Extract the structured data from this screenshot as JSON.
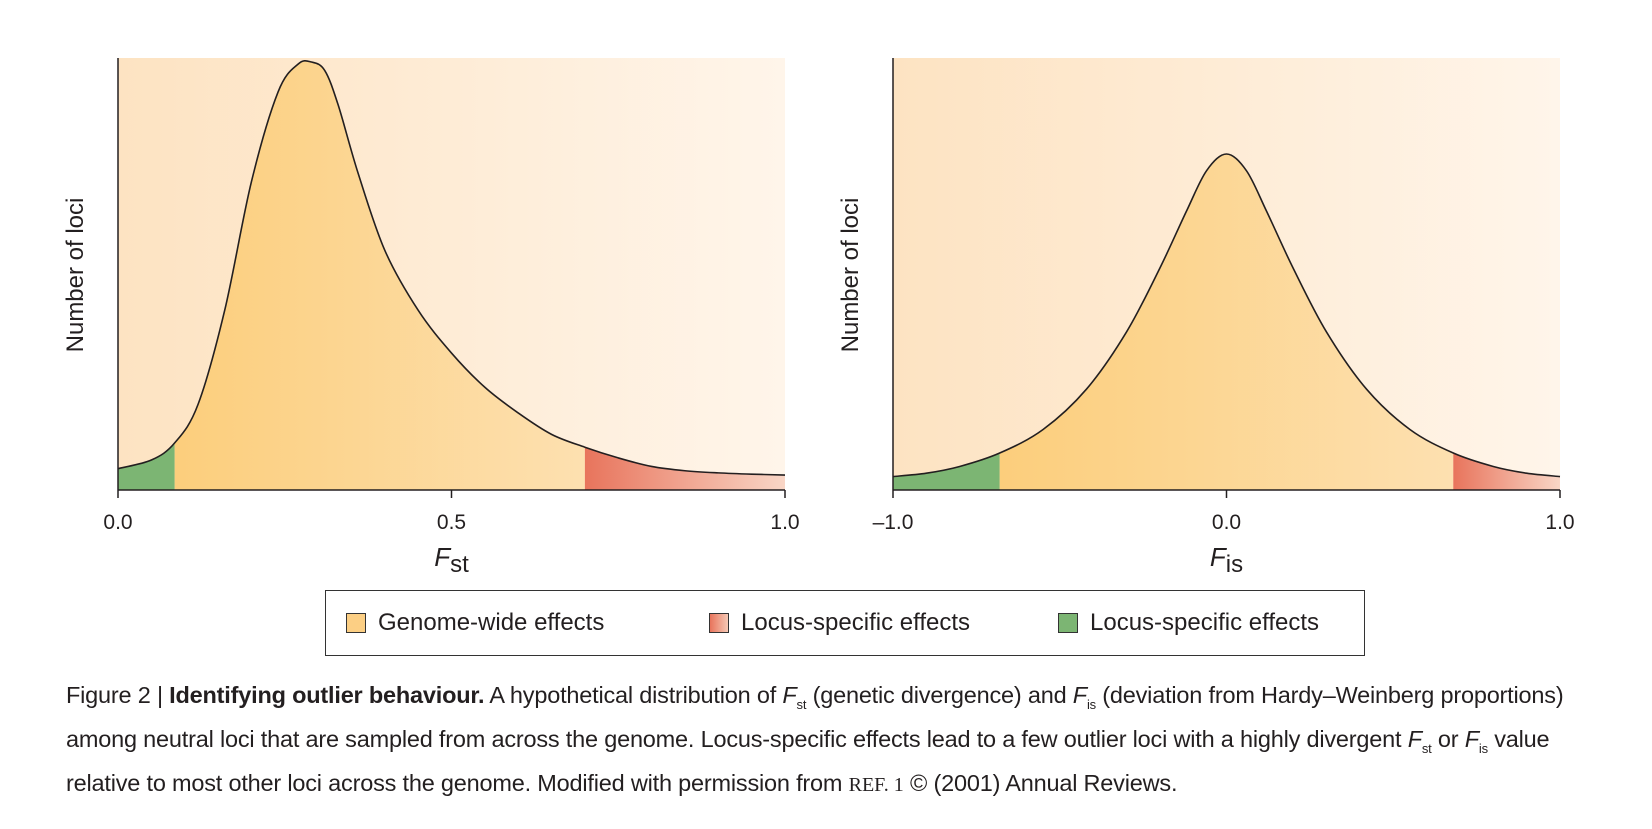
{
  "chart_data": [
    {
      "type": "area",
      "xlabel_main": "F",
      "xlabel_sub": "st",
      "ylabel": "Number of loci",
      "xlim": [
        0.0,
        1.0
      ],
      "ticks": [
        "0.0",
        "0.5",
        "1.0"
      ],
      "tick_values": [
        0.0,
        0.5,
        1.0
      ],
      "x": [
        0.0,
        0.05,
        0.085,
        0.12,
        0.16,
        0.2,
        0.24,
        0.27,
        0.29,
        0.31,
        0.33,
        0.36,
        0.4,
        0.45,
        0.5,
        0.55,
        0.6,
        0.65,
        0.7,
        0.75,
        0.8,
        0.85,
        0.9,
        0.95,
        1.0
      ],
      "y": [
        0.05,
        0.07,
        0.11,
        0.2,
        0.42,
        0.72,
        0.93,
        0.995,
        1.0,
        0.98,
        0.9,
        0.74,
        0.56,
        0.42,
        0.32,
        0.24,
        0.18,
        0.13,
        0.1,
        0.075,
        0.055,
        0.045,
        0.04,
        0.037,
        0.035
      ],
      "regions": [
        {
          "from": 0.0,
          "to": 0.085,
          "category": "green"
        },
        {
          "from": 0.085,
          "to": 0.7,
          "category": "orange"
        },
        {
          "from": 0.7,
          "to": 1.0,
          "category": "red"
        }
      ]
    },
    {
      "type": "area",
      "xlabel_main": "F",
      "xlabel_sub": "is",
      "ylabel": "Number of loci",
      "xlim": [
        -1.0,
        1.0
      ],
      "ticks": [
        "–1.0",
        "0.0",
        "1.0"
      ],
      "tick_values": [
        -1.0,
        0.0,
        1.0
      ],
      "x": [
        -1.0,
        -0.9,
        -0.8,
        -0.68,
        -0.55,
        -0.42,
        -0.3,
        -0.2,
        -0.12,
        -0.06,
        0.0,
        0.06,
        0.12,
        0.2,
        0.3,
        0.42,
        0.55,
        0.68,
        0.8,
        0.9,
        1.0
      ],
      "y": [
        0.04,
        0.05,
        0.07,
        0.11,
        0.18,
        0.3,
        0.47,
        0.66,
        0.83,
        0.95,
        1.0,
        0.95,
        0.83,
        0.66,
        0.47,
        0.3,
        0.18,
        0.11,
        0.07,
        0.05,
        0.04
      ],
      "regions": [
        {
          "from": -1.0,
          "to": -0.68,
          "category": "green"
        },
        {
          "from": -0.68,
          "to": 0.68,
          "category": "orange"
        },
        {
          "from": 0.68,
          "to": 1.0,
          "category": "red"
        }
      ]
    }
  ],
  "colors": {
    "background_peach": "#fde9cf",
    "orange": "#fdd07f",
    "red": "#e8745c",
    "green": "#7cb573",
    "line": "#231f20"
  },
  "legend": [
    {
      "label": "Genome-wide effects",
      "color": "#fccf84"
    },
    {
      "label": "Locus-specific effects",
      "color": "#e98670"
    },
    {
      "label": "Locus-specific effects",
      "color": "#7cb573"
    }
  ],
  "caption": {
    "prefix": "Figure 2 | ",
    "bold": "Identifying outlier behaviour.",
    "part1": " A hypothetical distribution of ",
    "f1": "F",
    "f1_sub": "st",
    "part2": " (genetic divergence) and ",
    "f2": "F",
    "f2_sub": "is",
    "part3": " (deviation from Hardy–Weinberg proportions) among neutral loci that are sampled from across the genome. Locus-specific effects lead to a few outlier loci with a highly divergent ",
    "f3": "F",
    "f3_sub": "st",
    "part4": " or ",
    "f4": "F",
    "f4_sub": "is",
    "part5": " value relative to most other loci across the genome. Modified with permission from ",
    "ref": "REF. 1",
    "part6": " © (2001) Annual Reviews."
  }
}
